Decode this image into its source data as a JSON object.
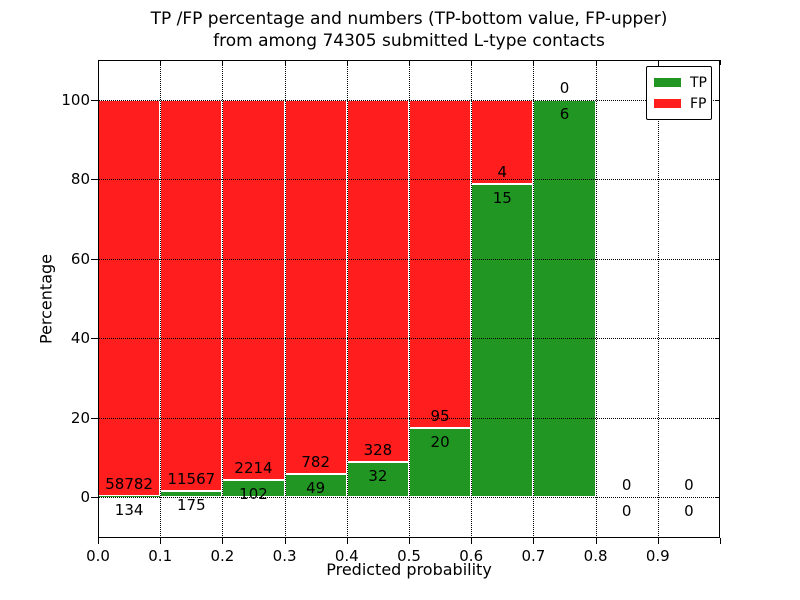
{
  "figure": {
    "title_line1": "TP /FP percentage and numbers (TP-bottom value, FP-upper)",
    "title_line2": "from among 74305 submitted L-type contacts"
  },
  "chart_data": {
    "type": "bar",
    "stacked": true,
    "title": "TP /FP percentage and numbers (TP-bottom value, FP-upper)\nfrom among 74305 submitted L-type contacts",
    "xlabel": "Predicted probability",
    "ylabel": "Percentage",
    "total_submitted": 74305,
    "contact_type": "L-type",
    "xlim": [
      0.0,
      1.0
    ],
    "ylim": [
      -10.3,
      110.1
    ],
    "x_tick_labels": [
      "0.0",
      "0.1",
      "0.2",
      "0.3",
      "0.4",
      "0.5",
      "0.6",
      "0.7",
      "0.8",
      "0.9"
    ],
    "y_tick_values": [
      0,
      20,
      40,
      60,
      80,
      100
    ],
    "grid": "dotted",
    "legend_position": "upper-right",
    "series": [
      {
        "name": "TP",
        "color": "#229622",
        "position": "bottom"
      },
      {
        "name": "FP",
        "color": "#ff1d1d",
        "position": "top"
      }
    ],
    "bins": [
      {
        "range": [
          0.0,
          0.1
        ],
        "tp": 134,
        "fp": 58782,
        "tp_pct": 0.23
      },
      {
        "range": [
          0.1,
          0.2
        ],
        "tp": 175,
        "fp": 11567,
        "tp_pct": 1.49
      },
      {
        "range": [
          0.2,
          0.3
        ],
        "tp": 102,
        "fp": 2214,
        "tp_pct": 4.4
      },
      {
        "range": [
          0.3,
          0.4
        ],
        "tp": 49,
        "fp": 782,
        "tp_pct": 5.9
      },
      {
        "range": [
          0.4,
          0.5
        ],
        "tp": 32,
        "fp": 328,
        "tp_pct": 8.89
      },
      {
        "range": [
          0.5,
          0.6
        ],
        "tp": 20,
        "fp": 95,
        "tp_pct": 17.39
      },
      {
        "range": [
          0.6,
          0.7
        ],
        "tp": 15,
        "fp": 4,
        "tp_pct": 78.95
      },
      {
        "range": [
          0.7,
          0.8
        ],
        "tp": 6,
        "fp": 0,
        "tp_pct": 100.0
      },
      {
        "range": [
          0.8,
          0.9
        ],
        "tp": 0,
        "fp": 0,
        "tp_pct": 0.0
      },
      {
        "range": [
          0.9,
          1.0
        ],
        "tp": 0,
        "fp": 0,
        "tp_pct": 0.0
      }
    ],
    "colors": {
      "tp": "#229622",
      "fp": "#ff1d1d",
      "grid": "#000000",
      "background": "#ffffff",
      "bar_edge": "#ffffff"
    }
  }
}
